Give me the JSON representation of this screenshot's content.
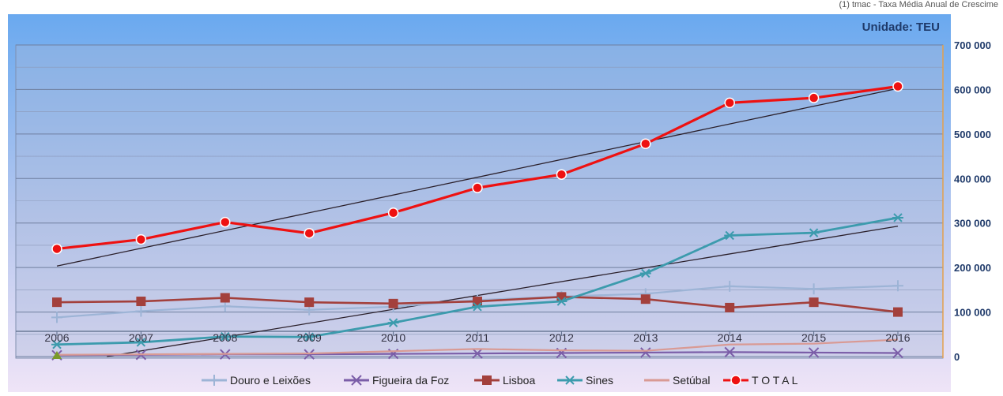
{
  "note": "(1) tmac - Taxa Média Anual de Crescime",
  "chart_data": {
    "type": "line",
    "unit_label": "Unidade: TEU",
    "categories": [
      "2006",
      "2007",
      "2008",
      "2009",
      "2010",
      "2011",
      "2012",
      "2013",
      "2014",
      "2015",
      "2016"
    ],
    "ylim": [
      0,
      700000
    ],
    "y_ticks": [
      0,
      100000,
      200000,
      300000,
      400000,
      500000,
      600000,
      700000
    ],
    "y_tick_labels": [
      "0",
      "100 000",
      "200 000",
      "300 000",
      "400 000",
      "500 000",
      "600 000",
      "700 000"
    ],
    "y_axis_position": "right",
    "grid": true,
    "legend_position": "bottom",
    "series": [
      {
        "name": "Douro e Leixões",
        "color": "#9db4d6",
        "marker": "plus",
        "values": [
          88000,
          102000,
          113000,
          105000,
          112000,
          127000,
          135000,
          141000,
          158000,
          152000,
          159000
        ]
      },
      {
        "name": "Figueira da Foz",
        "color": "#7b5ea8",
        "marker": "x",
        "values": [
          3000,
          4000,
          5000,
          5000,
          6000,
          7000,
          8000,
          9000,
          10000,
          9000,
          8000
        ]
      },
      {
        "name": "Lisboa",
        "color": "#a3403c",
        "marker": "square",
        "values": [
          122000,
          124000,
          132000,
          122000,
          119000,
          124000,
          134000,
          129000,
          110000,
          122000,
          100000
        ]
      },
      {
        "name": "Sines",
        "color": "#3c9bad",
        "marker": "asterisk",
        "values": [
          27000,
          32000,
          45000,
          44000,
          76000,
          112000,
          124000,
          187000,
          272000,
          278000,
          312000
        ]
      },
      {
        "name": "Setúbal",
        "color": "#d99a94",
        "marker": "none",
        "values": [
          4000,
          5000,
          6000,
          7000,
          12000,
          17000,
          14000,
          13000,
          27000,
          29000,
          38000
        ]
      },
      {
        "name": "T O T A L",
        "color": "#ee1111",
        "marker": "circle",
        "values": [
          242000,
          263000,
          302000,
          277000,
          323000,
          379000,
          409000,
          478000,
          570000,
          581000,
          607000
        ]
      }
    ]
  }
}
